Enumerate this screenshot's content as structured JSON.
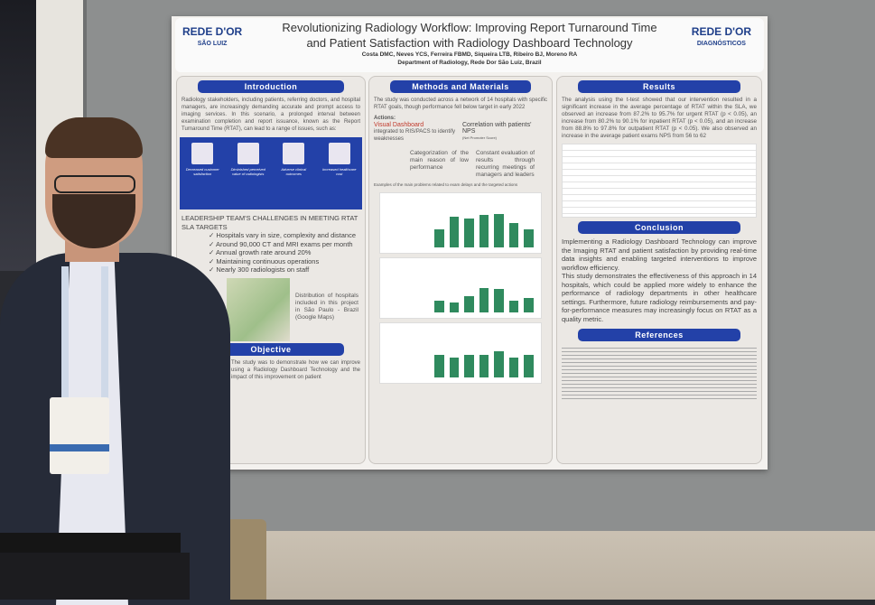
{
  "poster": {
    "title_line1": "Revolutionizing Radiology Workflow: Improving Report Turnaround Time",
    "title_line2": "and Patient Satisfaction with Radiology Dashboard Technology",
    "authors": "Costa DMC, Neves YCS, Ferreira FBMD, Siqueira LTB, Ribeiro BJ, Moreno RA",
    "department": "Department of Radiology, Rede Dor São Luiz, Brazil",
    "logo_left_1": "REDE D'OR",
    "logo_left_2": "SÃO LUIZ",
    "logo_right_1": "REDE D'OR",
    "logo_right_2": "DIAGNÓSTICOS",
    "introduction": {
      "heading": "Introduction",
      "text": "Radiology stakeholders, including patients, referring doctors, and hospital managers, are increasingly demanding accurate and prompt access to imaging services. In this scenario, a prolonged interval between examination completion and report issuance, known as the Report Turnaround Time (RTAT), can lead to a range of issues, such as:",
      "issues": [
        "Decreased customer satisfaction",
        "Diminished perceived value of radiologists",
        "Adverse clinical outcomes",
        "Increased healthcare cost"
      ],
      "challenges_heading": "Leadership team's challenges in meeting RTAT SLA targets",
      "challenges": [
        "Hospitals vary in size, complexity and distance",
        "Around 90,000 CT and MRI exams per month",
        "Annual growth rate around 20%",
        "Maintaining continuous operations",
        "Nearly 300 radiologists on staff"
      ],
      "map_caption": "Distribution of hospitals included in this project in São Paulo - Brazil (Google Maps)"
    },
    "objective": {
      "heading": "Objective",
      "text": "The study was to demonstrate how we can improve using a Radiology Dashboard Technology and the impact of this improvement on patient"
    },
    "methods": {
      "heading": "Methods and Materials",
      "text": "The study was conducted across a network of 14 hospitals with specific RTAT goals, though performance fell below target in early 2022",
      "actions_label": "Actions:",
      "action1_title": "Visual Dashboard",
      "action1_text": "integrated to RIS/PACS to identify weaknesses",
      "action2_title": "Correlation with patients' NPS",
      "action2_text": "(Net Promoter Score)",
      "action3": "Categorization of the main reason of low performance",
      "action4": "Constant evaluation of results through recurring meetings of managers and leaders",
      "examples_caption": "Examples of the main problems related to exam delays and the targeted actions"
    },
    "results": {
      "heading": "Results",
      "text": "The analysis using the t-test showed that our intervention resulted in a significant increase in the average percentage of RTAT within the SLA, we observed an increase from 87.2% to 95.7% for urgent RTAT (p < 0.05), an increase from 80.2% to 90.1% for inpatient RTAT (p < 0.05), and an increase from 88.8% to 97.8% for outpatient RTAT (p < 0.05). We also observed an increase in the average patient exams NPS from 56 to 62"
    },
    "conclusion": {
      "heading": "Conclusion",
      "text1": "Implementing a Radiology Dashboard Technology can improve the Imaging RTAT and patient satisfaction by providing real-time data insights and enabling targeted interventions to improve workflow efficiency.",
      "text2": "This study demonstrates the effectiveness of this approach in 14 hospitals, which could be applied more widely to enhance the performance of radiology departments in other healthcare settings. Furthermore, future radiology reimbursements and pay-for-performance measures may increasingly focus on RTAT as a quality metric."
    },
    "references": {
      "heading": "References"
    },
    "colors": {
      "header_blue": "#2341a8",
      "bar_green": "#2f8a5e"
    }
  }
}
